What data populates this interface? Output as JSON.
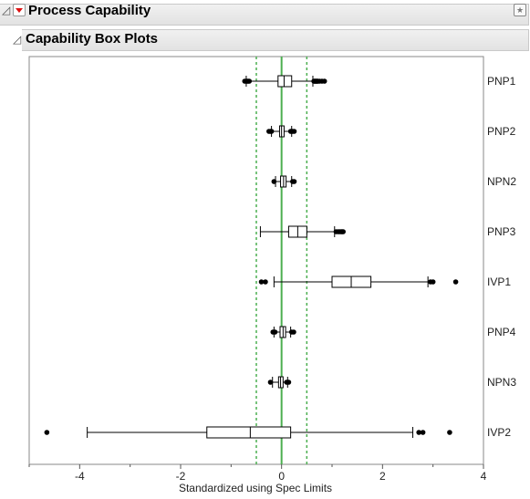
{
  "outline": {
    "title": "Process Capability",
    "section_title": "Capability Box Plots"
  },
  "chart_data": {
    "type": "boxplot",
    "title": "",
    "xlabel": "Standardized using Spec Limits",
    "xlim": [
      -5,
      4
    ],
    "xticks": [
      -4,
      -2,
      0,
      2,
      4
    ],
    "x_tick_labels": [
      "-4",
      "-2",
      "0",
      "2",
      "4"
    ],
    "center_line": 0,
    "spec_lines": [
      -0.5,
      0.5
    ],
    "series": [
      {
        "name": "PNP1",
        "whisker_low": -0.7,
        "q1": -0.07,
        "median": 0.05,
        "q3": 0.2,
        "whisker_high": 0.62,
        "outliers": [
          -0.73,
          -0.7,
          -0.68,
          -0.66,
          -0.64,
          0.64,
          0.66,
          0.68,
          0.7,
          0.72,
          0.75,
          0.8,
          0.85,
          0.66,
          0.7
        ]
      },
      {
        "name": "PNP2",
        "whisker_low": -0.2,
        "q1": -0.04,
        "median": 0.0,
        "q3": 0.05,
        "whisker_high": 0.2,
        "outliers": [
          -0.25,
          -0.22,
          -0.2,
          0.18,
          0.2,
          0.22,
          0.25
        ]
      },
      {
        "name": "NPN2",
        "whisker_low": -0.12,
        "q1": -0.02,
        "median": 0.04,
        "q3": 0.09,
        "whisker_high": 0.2,
        "outliers": [
          -0.15,
          0.22,
          0.25
        ]
      },
      {
        "name": "PNP3",
        "whisker_low": -0.42,
        "q1": 0.14,
        "median": 0.32,
        "q3": 0.5,
        "whisker_high": 1.05,
        "outliers": [
          1.08,
          1.12,
          1.15,
          1.18,
          1.2,
          1.22
        ]
      },
      {
        "name": "IVP1",
        "whisker_low": -0.15,
        "q1": 1.0,
        "median": 1.38,
        "q3": 1.77,
        "whisker_high": 2.9,
        "outliers": [
          -0.4,
          -0.32,
          2.95,
          3.0,
          3.45
        ]
      },
      {
        "name": "PNP4",
        "whisker_low": -0.15,
        "q1": -0.03,
        "median": 0.03,
        "q3": 0.08,
        "whisker_high": 0.18,
        "outliers": [
          -0.17,
          -0.13,
          0.2,
          0.24
        ]
      },
      {
        "name": "NPN3",
        "whisker_low": -0.18,
        "q1": -0.06,
        "median": -0.02,
        "q3": 0.03,
        "whisker_high": 0.12,
        "outliers": [
          -0.22,
          0.1,
          0.14
        ]
      },
      {
        "name": "IVP2",
        "whisker_low": -3.85,
        "q1": -1.48,
        "median": -0.62,
        "q3": 0.18,
        "whisker_high": 2.6,
        "outliers": [
          -4.65,
          2.72,
          2.8,
          3.33
        ]
      }
    ],
    "colors": {
      "center_line": "#4caf50",
      "spec_lines": "#4caf50",
      "box": "#000000",
      "outlier": "#000000"
    }
  }
}
